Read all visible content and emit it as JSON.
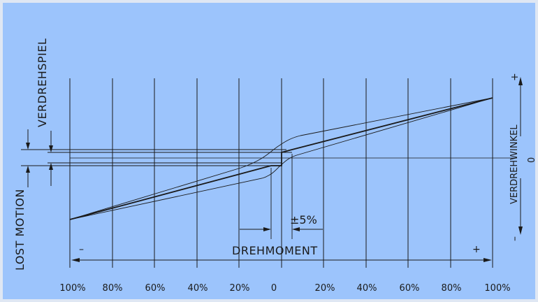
{
  "diagram": {
    "vertical_labels": {
      "backlash": "VERDREHSPIEL",
      "lost_motion": "LOST MOTION",
      "twist_angle": "VERDREHWINKEL"
    },
    "axis_labels": {
      "torque": "DREHMOMENT",
      "tolerance": "±5%",
      "zero_right": "0"
    },
    "signs": {
      "left_minus": "–",
      "right_plus": "+",
      "top_plus": "+",
      "bottom_minus": "–"
    },
    "tick_labels": [
      "100%",
      "80%",
      "60%",
      "40%",
      "20%",
      "0",
      "20%",
      "40%",
      "60%",
      "80%",
      "100%"
    ]
  },
  "colors": {
    "background": "#9cc4fc",
    "border": "#dfe7f3",
    "lines": "#1a1a1a"
  }
}
